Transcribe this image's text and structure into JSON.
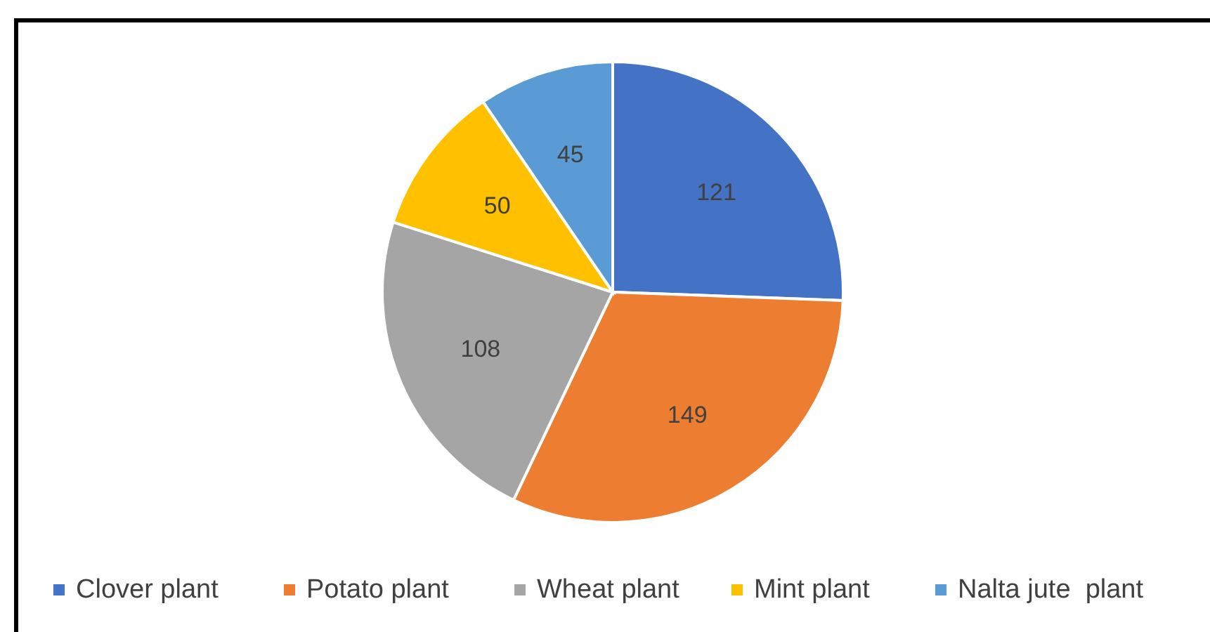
{
  "chart_data": {
    "type": "pie",
    "categories": [
      "Clover plant",
      "Potato plant",
      "Wheat plant",
      "Mint plant",
      "Nalta jute  plant"
    ],
    "values": [
      121,
      149,
      108,
      50,
      45
    ],
    "colors": [
      "#4472c4",
      "#ed7d31",
      "#a5a5a5",
      "#ffc000",
      "#5b9bd5"
    ],
    "data_labels": true,
    "legend": "bottom"
  }
}
